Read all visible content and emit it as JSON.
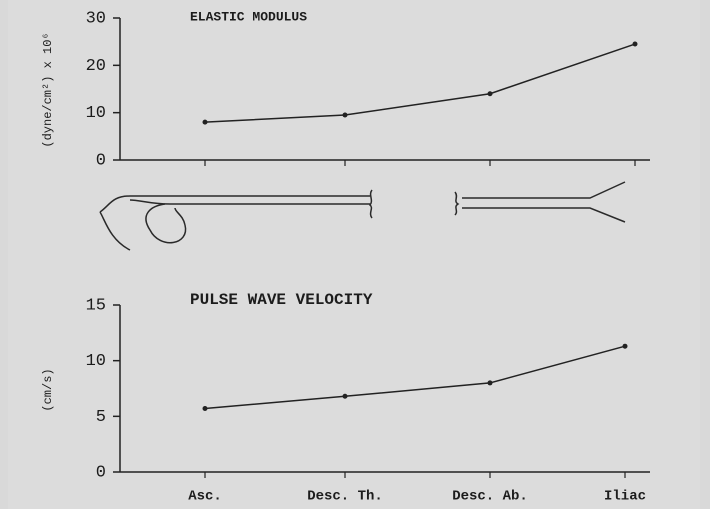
{
  "chart_data": [
    {
      "type": "line",
      "title": "ELASTIC MODULUS",
      "y_label": "(dyne/cm²) x 10⁶",
      "categories": [
        null,
        null,
        null,
        null
      ],
      "values": [
        8,
        9.5,
        14,
        24.5
      ],
      "color": "#222222",
      "ylim": [
        0,
        30
      ],
      "yticks": [
        0,
        10,
        20,
        30
      ]
    },
    {
      "type": "line",
      "title": "PULSE WAVE VELOCITY",
      "y_label": "(cm/s)",
      "categories": [
        "Asc.",
        "Desc. Th.",
        "Desc. Ab.",
        "Iliac"
      ],
      "values": [
        5.7,
        6.8,
        8,
        11.3
      ],
      "color": "#222222",
      "ylim": [
        0,
        15
      ],
      "yticks": [
        0,
        5,
        10,
        15
      ]
    }
  ]
}
